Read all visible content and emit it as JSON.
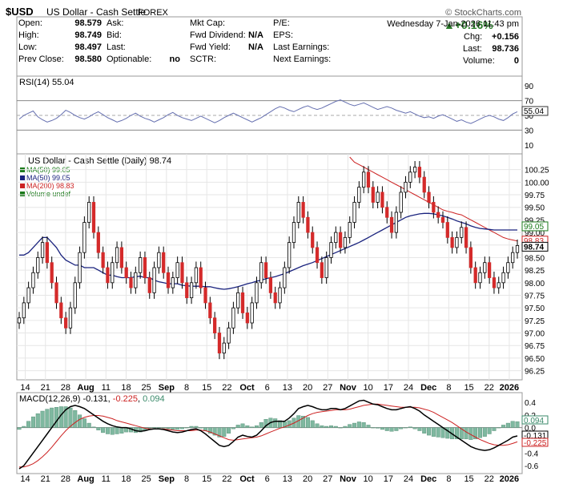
{
  "header": {
    "symbol": "$USD",
    "name": "US Dollar - Cash Settle",
    "exchange": "FOREX",
    "brand": "© StockCharts.com",
    "datetime": "Wednesday  7-Jan-2026  11:43 pm",
    "change_pct": "+0.16%",
    "stats": [
      {
        "label": "Open:",
        "value": "98.579"
      },
      {
        "label": "High:",
        "value": "98.749"
      },
      {
        "label": "Low:",
        "value": "98.497"
      },
      {
        "label": "Prev Close:",
        "value": "98.580"
      }
    ],
    "stats2": [
      {
        "label": "Ask:",
        "value": ""
      },
      {
        "label": "Bid:",
        "value": ""
      },
      {
        "label": "Last:",
        "value": ""
      },
      {
        "label": "Optionable:",
        "value": "no"
      }
    ],
    "stats3": [
      {
        "label": "Mkt Cap:",
        "value": ""
      },
      {
        "label": "Fwd Dividend:",
        "value": "N/A"
      },
      {
        "label": "Fwd Yield:",
        "value": "N/A"
      },
      {
        "label": "SCTR:",
        "value": ""
      }
    ],
    "stats4": [
      {
        "label": "P/E:"
      },
      {
        "label": "EPS:"
      },
      {
        "label": "Last Earnings:"
      },
      {
        "label": "Next Earnings:"
      }
    ],
    "stats5": [
      {
        "label": "Chg:",
        "value": "+0.156"
      },
      {
        "label": "Last:",
        "value": "98.736"
      },
      {
        "label": "Volume:",
        "value": "0"
      }
    ]
  },
  "chart_data": [
    {
      "type": "line",
      "panel": "RSI",
      "label": "RSI(14) 55.04",
      "last_value": "55.04",
      "ylim": [
        0,
        100
      ],
      "ticks": [
        10,
        30,
        50,
        70,
        90
      ],
      "values": [
        45,
        50,
        53,
        56,
        48,
        44,
        41,
        43,
        46,
        51,
        57,
        54,
        50,
        47,
        45,
        48,
        52,
        55,
        51,
        47,
        44,
        41,
        43,
        46,
        50,
        53,
        49,
        46,
        44,
        41,
        44,
        47,
        51,
        54,
        50,
        47,
        45,
        43,
        46,
        49,
        46,
        43,
        40,
        43,
        47,
        50,
        53,
        50,
        47,
        44,
        41,
        44,
        47,
        51,
        55,
        59,
        62,
        60,
        57,
        55,
        58,
        61,
        63,
        60,
        58,
        60,
        63,
        66,
        69,
        71,
        68,
        65,
        63,
        65,
        67,
        64,
        61,
        58,
        60,
        62,
        60,
        57,
        55,
        53,
        55,
        52,
        49,
        47,
        48,
        46,
        49,
        51,
        48,
        45,
        42,
        44,
        41,
        39,
        42,
        45,
        48,
        50,
        48,
        45,
        43,
        47,
        52,
        55.04
      ]
    },
    {
      "type": "candlestick",
      "panel": "Price",
      "label": "US Dollar - Cash Settle (Daily) 98.74",
      "legend": [
        {
          "name": "MA(50) 99.05",
          "color": "#1a7a1a"
        },
        {
          "name": "MA(50) 99.05",
          "color": "#1a237e"
        },
        {
          "name": "MA(200) 98.83",
          "color": "#cc2222"
        },
        {
          "name": "Volume undef",
          "color": "#1a7a1a"
        }
      ],
      "ylim": [
        96.1,
        100.5
      ],
      "yticks": [
        96.25,
        96.5,
        96.75,
        97.0,
        97.25,
        97.5,
        97.75,
        98.0,
        98.25,
        98.5,
        98.75,
        99.0,
        99.25,
        99.5,
        99.75,
        100.0,
        100.25
      ],
      "ytick_labels": [
        "96.25",
        "96.50",
        "96.75",
        "97.00",
        "97.25",
        "97.50",
        "97.75",
        "98.00",
        "98.25",
        "98.50",
        "98.75",
        "99.00",
        "99.25",
        "99.50",
        "99.75",
        "100.00",
        "100.25"
      ],
      "x_tick_labels": [
        "14",
        "21",
        "28",
        "Aug",
        "11",
        "18",
        "25",
        "Sep",
        "8",
        "15",
        "22",
        "Oct",
        "6",
        "13",
        "20",
        "27",
        "Nov",
        "10",
        "17",
        "24",
        "Dec",
        "8",
        "15",
        "22",
        "2026"
      ],
      "close": [
        97.3,
        97.6,
        97.9,
        98.2,
        98.5,
        98.8,
        98.4,
        98.0,
        97.6,
        97.3,
        97.1,
        97.5,
        98.0,
        98.6,
        99.2,
        99.6,
        99.0,
        98.6,
        98.3,
        98.0,
        98.4,
        98.7,
        98.3,
        98.1,
        97.9,
        98.2,
        98.5,
        98.1,
        97.8,
        98.3,
        98.6,
        98.2,
        97.9,
        98.1,
        98.4,
        98.0,
        97.7,
        98.0,
        98.3,
        97.9,
        97.6,
        97.3,
        97.0,
        96.6,
        96.8,
        97.1,
        97.5,
        97.8,
        97.4,
        97.2,
        97.6,
        98.0,
        98.4,
        98.1,
        97.8,
        97.6,
        97.9,
        98.3,
        98.8,
        99.2,
        99.6,
        99.3,
        99.0,
        98.7,
        98.4,
        98.1,
        98.5,
        98.8,
        99.0,
        98.7,
        98.9,
        99.2,
        99.6,
        99.9,
        100.2,
        99.9,
        99.6,
        99.8,
        99.5,
        99.3,
        99.0,
        99.4,
        99.8,
        100.0,
        100.2,
        100.3,
        100.1,
        99.8,
        99.6,
        99.4,
        99.3,
        99.2,
        98.9,
        98.7,
        98.9,
        99.1,
        98.7,
        98.3,
        98.0,
        98.2,
        98.4,
        98.1,
        97.9,
        98.0,
        98.2,
        98.4,
        98.6,
        98.74
      ],
      "ma50": [
        98.55,
        98.55,
        98.6,
        98.7,
        98.8,
        98.9,
        98.9,
        98.8,
        98.7,
        98.55,
        98.45,
        98.4,
        98.35,
        98.35,
        98.3,
        98.3,
        98.3,
        98.25,
        98.2,
        98.15,
        98.15,
        98.12,
        98.1,
        98.1,
        98.1,
        98.12,
        98.13,
        98.1,
        98.1,
        98.05,
        98.02,
        98.0,
        97.98,
        97.98,
        97.98,
        97.95,
        97.94,
        97.93,
        97.93,
        97.93,
        97.92,
        97.92,
        97.9,
        97.88,
        97.87,
        97.88,
        97.9,
        97.92,
        97.95,
        97.98,
        98.0,
        98.03,
        98.05,
        98.08,
        98.1,
        98.12,
        98.15,
        98.18,
        98.22,
        98.26,
        98.3,
        98.34,
        98.37,
        98.4,
        98.44,
        98.48,
        98.52,
        98.56,
        98.6,
        98.64,
        98.68,
        98.72,
        98.76,
        98.8,
        98.85,
        98.9,
        98.95,
        99.0,
        99.05,
        99.1,
        99.15,
        99.2,
        99.25,
        99.3,
        99.33,
        99.35,
        99.37,
        99.38,
        99.38,
        99.37,
        99.35,
        99.33,
        99.3,
        99.27,
        99.23,
        99.2,
        99.17,
        99.13,
        99.1,
        99.08,
        99.07,
        99.06,
        99.05,
        99.05,
        99.05,
        99.05,
        99.05,
        99.05
      ],
      "ma200_from_index": 71,
      "ma200": [
        100.5,
        100.4,
        100.35,
        100.3,
        100.25,
        100.2,
        100.15,
        100.1,
        100.05,
        100.0,
        99.95,
        99.9,
        99.85,
        99.8,
        99.75,
        99.7,
        99.65,
        99.6,
        99.55,
        99.5,
        99.45,
        99.42,
        99.4,
        99.37,
        99.35,
        99.3,
        99.25,
        99.2,
        99.15,
        99.1,
        99.05,
        99.0,
        98.95,
        98.9,
        98.87,
        98.85,
        98.83
      ]
    },
    {
      "type": "bar+line",
      "panel": "MACD",
      "label": "MACD(12,26,9) -0.131, -0.225, 0.094",
      "macd_label": "MACD(12,26,9) -0.131",
      "signal_label": "-0.225",
      "hist_label": "0.094",
      "value_tags": [
        "0.094",
        "-0.131",
        "-0.225"
      ],
      "ylim": [
        -0.7,
        0.5
      ],
      "ticks": [
        -0.6,
        -0.4,
        -0.2,
        0.0,
        0.2,
        0.4
      ],
      "tick_labels": [
        "-0.6",
        "-0.4",
        "-0.2",
        "0.0",
        "0.2",
        "0.4"
      ],
      "macd": [
        -0.65,
        -0.6,
        -0.5,
        -0.4,
        -0.3,
        -0.2,
        -0.1,
        0.0,
        0.1,
        0.2,
        0.28,
        0.33,
        0.35,
        0.33,
        0.3,
        0.25,
        0.2,
        0.15,
        0.1,
        0.06,
        0.03,
        0.01,
        0.0,
        0.0,
        -0.02,
        -0.05,
        -0.06,
        -0.05,
        -0.03,
        -0.02,
        -0.02,
        -0.03,
        -0.05,
        -0.07,
        -0.08,
        -0.07,
        -0.05,
        -0.03,
        -0.02,
        -0.05,
        -0.1,
        -0.16,
        -0.22,
        -0.28,
        -0.3,
        -0.28,
        -0.22,
        -0.15,
        -0.12,
        -0.14,
        -0.15,
        -0.12,
        -0.05,
        0.03,
        0.08,
        0.1,
        0.1,
        0.1,
        0.15,
        0.22,
        0.3,
        0.33,
        0.35,
        0.33,
        0.3,
        0.28,
        0.28,
        0.3,
        0.3,
        0.28,
        0.3,
        0.34,
        0.38,
        0.42,
        0.43,
        0.4,
        0.37,
        0.36,
        0.33,
        0.3,
        0.28,
        0.28,
        0.3,
        0.32,
        0.33,
        0.3,
        0.26,
        0.2,
        0.15,
        0.1,
        0.05,
        0.0,
        -0.05,
        -0.1,
        -0.15,
        -0.2,
        -0.25,
        -0.3,
        -0.33,
        -0.35,
        -0.36,
        -0.35,
        -0.32,
        -0.28,
        -0.24,
        -0.2,
        -0.15,
        -0.131
      ],
      "signal": [
        -0.62,
        -0.62,
        -0.6,
        -0.57,
        -0.52,
        -0.46,
        -0.39,
        -0.31,
        -0.22,
        -0.13,
        -0.05,
        0.02,
        0.08,
        0.13,
        0.16,
        0.18,
        0.19,
        0.19,
        0.18,
        0.16,
        0.14,
        0.11,
        0.09,
        0.07,
        0.05,
        0.03,
        0.01,
        -0.01,
        -0.02,
        -0.02,
        -0.02,
        -0.02,
        -0.03,
        -0.04,
        -0.05,
        -0.05,
        -0.05,
        -0.05,
        -0.04,
        -0.04,
        -0.05,
        -0.07,
        -0.1,
        -0.13,
        -0.16,
        -0.19,
        -0.2,
        -0.19,
        -0.18,
        -0.17,
        -0.16,
        -0.15,
        -0.13,
        -0.1,
        -0.07,
        -0.04,
        -0.01,
        0.01,
        0.04,
        0.07,
        0.11,
        0.15,
        0.19,
        0.22,
        0.24,
        0.25,
        0.26,
        0.27,
        0.28,
        0.28,
        0.28,
        0.29,
        0.31,
        0.33,
        0.35,
        0.36,
        0.37,
        0.37,
        0.36,
        0.35,
        0.34,
        0.33,
        0.32,
        0.32,
        0.32,
        0.32,
        0.31,
        0.29,
        0.27,
        0.24,
        0.2,
        0.16,
        0.12,
        0.08,
        0.03,
        -0.02,
        -0.07,
        -0.11,
        -0.15,
        -0.19,
        -0.22,
        -0.25,
        -0.27,
        -0.28,
        -0.28,
        -0.27,
        -0.25,
        -0.225
      ]
    }
  ]
}
